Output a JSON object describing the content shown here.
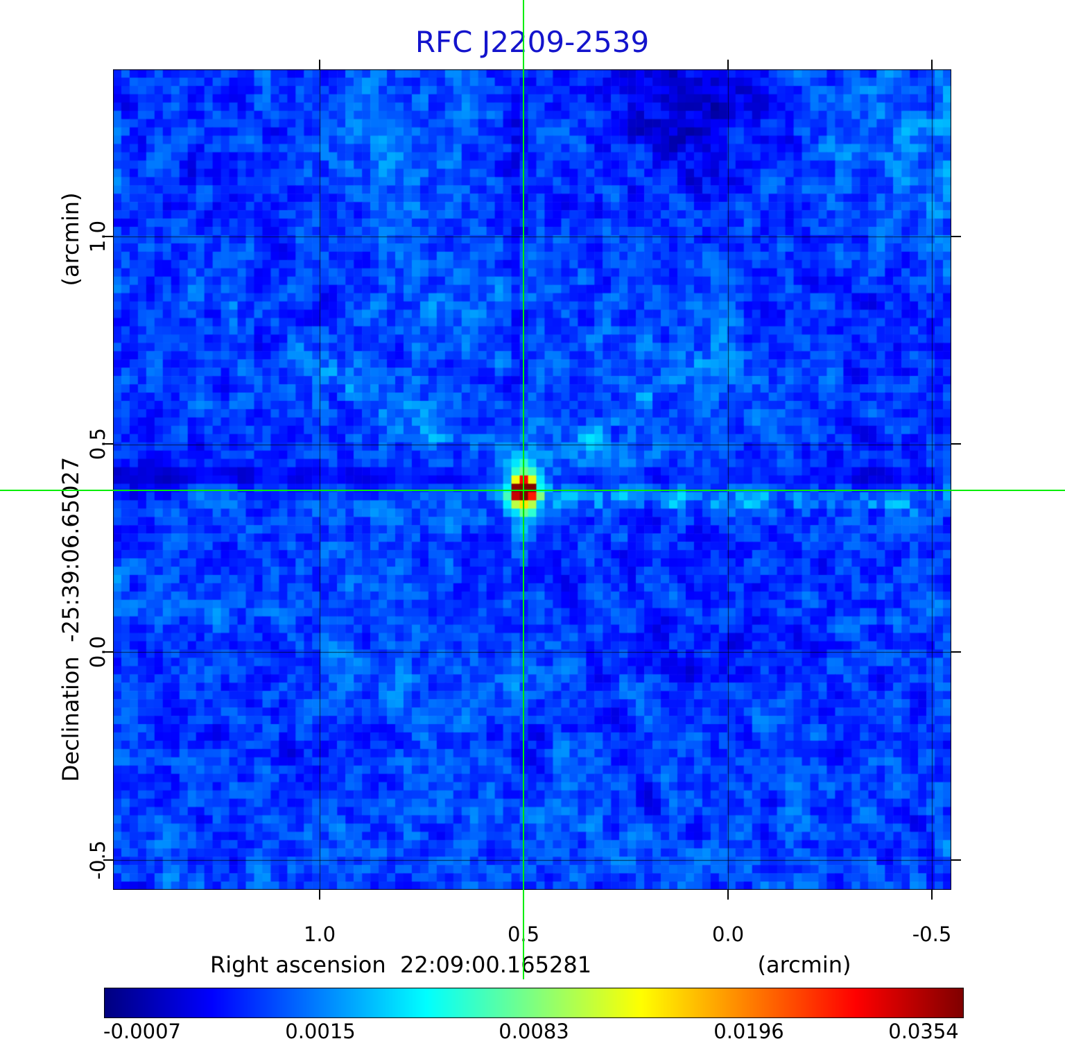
{
  "title": "RFC J2209-2539",
  "axes": {
    "x_label": "Right ascension  22:09:00.165281",
    "x_unit": "(arcmin)",
    "y_label": "Declination  -25:39:06.65027",
    "y_unit": "(arcmin)",
    "x_ticks": [
      "1.0",
      "0.5",
      "0.0",
      "-0.5"
    ],
    "y_ticks": [
      "1.0",
      "0.5",
      "0.0",
      "-0.5"
    ]
  },
  "colorbar": {
    "tick_labels": [
      "-0.0007",
      "0.0015",
      "0.0083",
      "0.0196",
      "0.0354"
    ]
  },
  "colors": {
    "title": "#1414cc",
    "crosshair": "#00ee00",
    "frame": "#000000"
  },
  "chart_data": {
    "type": "heatmap",
    "title": "RFC J2209-2539",
    "xlabel": "Right ascension 22:09:00.165281 (arcmin)",
    "ylabel": "Declination -25:39:06.65027 (arcmin)",
    "x_left": 1.507,
    "x_right": -0.548,
    "y_top": 1.401,
    "y_bottom": -0.571,
    "x_tick_values": [
      1.0,
      0.5,
      0.0,
      -0.5
    ],
    "y_tick_values": [
      1.0,
      0.5,
      0.0,
      -0.5
    ],
    "grid": true,
    "colormap": "jet",
    "intensity_scale": "quadratic",
    "value_min": -0.0007,
    "value_max": 0.0354,
    "colorbar_tick_values": [
      -0.0007,
      0.0015,
      0.0083,
      0.0196,
      0.0354
    ],
    "source": {
      "ra_arcmin": 0.5,
      "dec_arcmin": 0.389,
      "peak_value": 0.0354,
      "description": "compact bright source at crosshair with vertically elongated halo"
    },
    "crosshair": {
      "ra_arcmin": 0.5,
      "dec_arcmin": 0.389
    },
    "background_level_typical": 0.001
  }
}
